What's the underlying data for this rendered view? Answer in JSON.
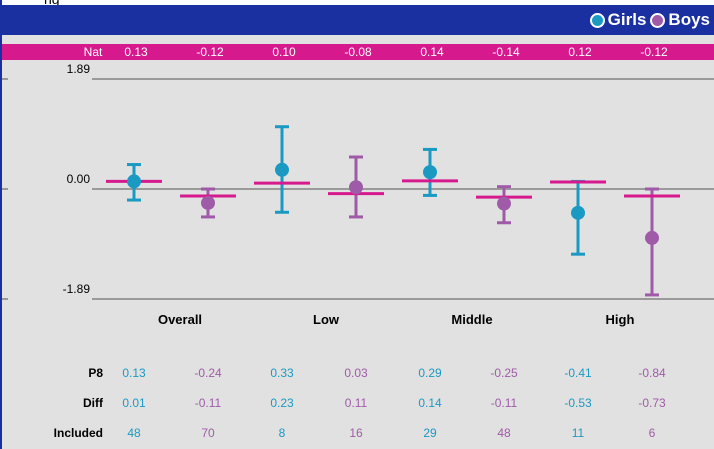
{
  "title_fragment": "ng",
  "legend": {
    "girls": "Girls",
    "boys": "Boys",
    "girls_color": "#1a9ac2",
    "boys_color": "#a05ba8"
  },
  "nat_row": {
    "label": "Nat",
    "values": [
      "0.13",
      "-0.12",
      "0.10",
      "-0.08",
      "0.14",
      "-0.14",
      "0.12",
      "-0.12"
    ]
  },
  "chart_data": {
    "type": "scatter",
    "y_ticks": [
      "1.89",
      "0.00",
      "-1.89"
    ],
    "ylim": [
      -1.89,
      1.89
    ],
    "categories": [
      "Overall",
      "Low",
      "Middle",
      "High"
    ],
    "series": [
      {
        "name": "Girls",
        "color": "#1a9ac2",
        "points": [
          {
            "category": "Overall",
            "value": 0.13,
            "low": -0.19,
            "high": 0.42,
            "nat": 0.13
          },
          {
            "category": "Low",
            "value": 0.33,
            "low": -0.4,
            "high": 1.07,
            "nat": 0.1
          },
          {
            "category": "Middle",
            "value": 0.29,
            "low": -0.11,
            "high": 0.68,
            "nat": 0.14
          },
          {
            "category": "High",
            "value": -0.41,
            "low": -1.12,
            "high": 0.13,
            "nat": 0.12
          }
        ]
      },
      {
        "name": "Boys",
        "color": "#a05ba8",
        "points": [
          {
            "category": "Overall",
            "value": -0.24,
            "low": -0.48,
            "high": 0.0,
            "nat": -0.12
          },
          {
            "category": "Low",
            "value": 0.03,
            "low": -0.48,
            "high": 0.55,
            "nat": -0.08
          },
          {
            "category": "Middle",
            "value": -0.25,
            "low": -0.58,
            "high": 0.04,
            "nat": -0.14
          },
          {
            "category": "High",
            "value": -0.84,
            "low": -1.82,
            "high": 0.0,
            "nat": -0.12
          }
        ]
      }
    ],
    "nat_marker_color": "#d7198e"
  },
  "stats": {
    "p8": {
      "label": "P8",
      "values": [
        "0.13",
        "-0.24",
        "0.33",
        "0.03",
        "0.29",
        "-0.25",
        "-0.41",
        "-0.84"
      ]
    },
    "diff": {
      "label": "Diff",
      "values": [
        "0.01",
        "-0.11",
        "0.23",
        "0.11",
        "0.14",
        "-0.11",
        "-0.53",
        "-0.73"
      ]
    },
    "included": {
      "label": "Included",
      "values": [
        "48",
        "70",
        "8",
        "16",
        "29",
        "48",
        "11",
        "6"
      ]
    }
  }
}
